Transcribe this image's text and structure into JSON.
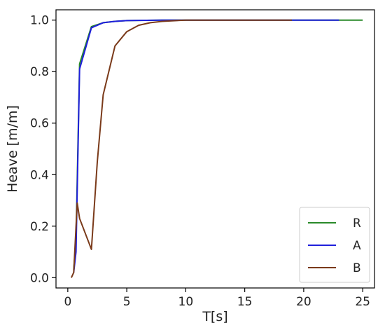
{
  "chart_data": {
    "type": "line",
    "xlabel": "T[s]",
    "ylabel": "Heave [m/m]",
    "xlim": [
      -1,
      26
    ],
    "ylim": [
      -0.04,
      1.04
    ],
    "xticks": [
      0,
      5,
      10,
      15,
      20,
      25
    ],
    "yticks": [
      0.0,
      0.2,
      0.4,
      0.6,
      0.8,
      1.0
    ],
    "xtick_labels": [
      "0",
      "5",
      "10",
      "15",
      "20",
      "25"
    ],
    "ytick_labels": [
      "0.0",
      "0.2",
      "0.4",
      "0.6",
      "0.8",
      "1.0"
    ],
    "grid": false,
    "legend_position": "bottom-right",
    "series": [
      {
        "name": "R",
        "color": "#2a8a2a",
        "x": [
          0.5,
          0.7,
          1.0,
          2.0,
          3.0,
          4.0,
          5.0,
          6.0,
          8.0,
          10.0,
          15.0,
          20.0,
          25.0
        ],
        "y": [
          0.03,
          0.15,
          0.83,
          0.975,
          0.99,
          0.995,
          0.998,
          0.999,
          1.0,
          1.0,
          1.0,
          1.0,
          1.0
        ]
      },
      {
        "name": "A",
        "color": "#1f1fdc",
        "x": [
          0.5,
          0.7,
          1.0,
          2.0,
          3.0,
          4.0,
          5.0,
          6.0,
          8.0,
          10.0,
          15.0,
          20.0,
          23.0
        ],
        "y": [
          0.02,
          0.1,
          0.81,
          0.97,
          0.99,
          0.995,
          0.998,
          0.999,
          1.0,
          1.0,
          1.0,
          1.0,
          1.0
        ]
      },
      {
        "name": "B",
        "color": "#7a3a1a",
        "x": [
          0.3,
          0.5,
          0.8,
          1.0,
          2.0,
          2.5,
          3.0,
          4.0,
          5.0,
          6.0,
          7.0,
          8.0,
          10.0,
          15.0,
          19.0
        ],
        "y": [
          0.0,
          0.02,
          0.29,
          0.23,
          0.11,
          0.45,
          0.71,
          0.9,
          0.955,
          0.98,
          0.99,
          0.995,
          1.0,
          1.0,
          1.0
        ]
      }
    ]
  }
}
